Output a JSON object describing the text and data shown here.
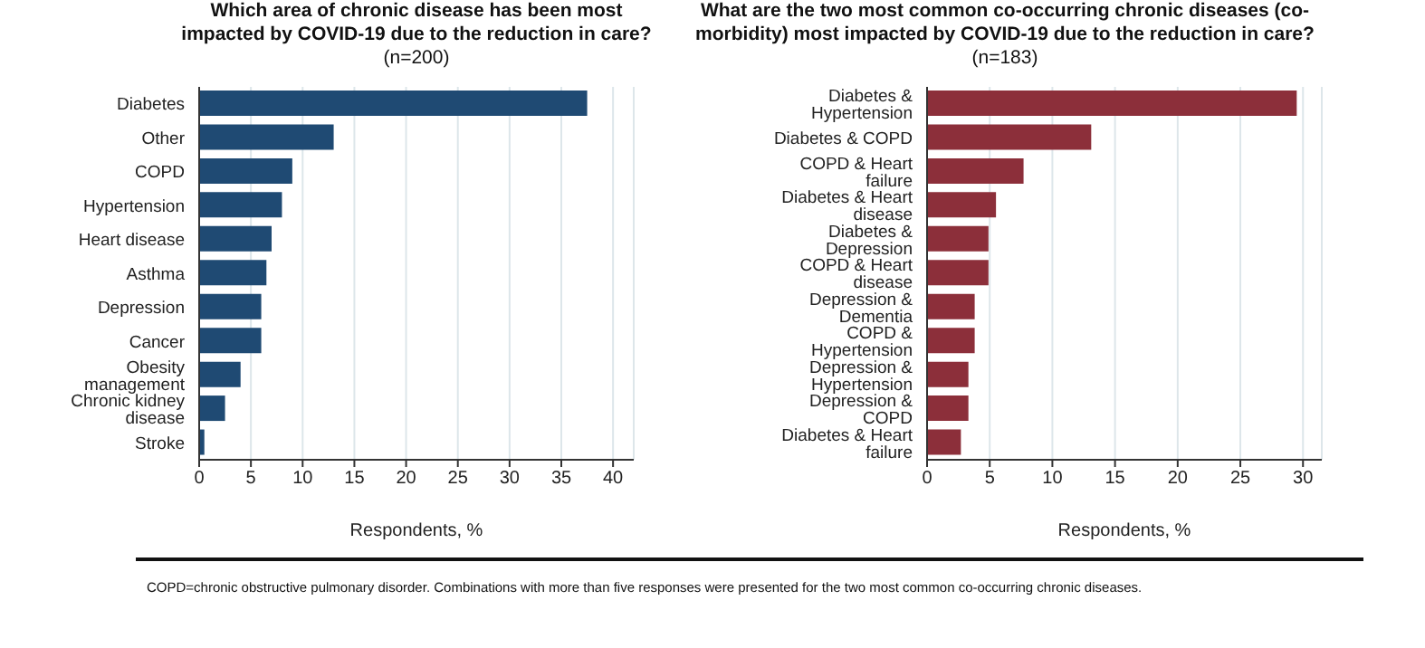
{
  "chart_data": [
    {
      "type": "bar",
      "orientation": "horizontal",
      "title": "Which area of chronic disease has been most impacted by COVID-19 due to the reduction in care?",
      "subtitle": "(n=200)",
      "xlabel": "Respondents, %",
      "categories": [
        "Diabetes",
        "Other",
        "COPD",
        "Hypertension",
        "Heart disease",
        "Asthma",
        "Depression",
        "Cancer",
        "Obesity management",
        "Chronic kidney disease",
        "Stroke"
      ],
      "values": [
        37.5,
        13,
        9,
        8,
        7,
        6.5,
        6,
        6,
        4,
        2.5,
        0.5
      ],
      "color": "#1f4a73",
      "xlim": [
        0,
        42
      ],
      "xticks": [
        0,
        5,
        10,
        15,
        20,
        25,
        30,
        35,
        40
      ],
      "grid": "x",
      "legend": false
    },
    {
      "type": "bar",
      "orientation": "horizontal",
      "title": "What are the two most common co-occurring chronic diseases (co-morbidity) most impacted by COVID-19 due to the reduction in care?",
      "subtitle": "(n=183)",
      "xlabel": "Respondents, %",
      "categories": [
        "Diabetes & Hypertension",
        "Diabetes & COPD",
        "COPD & Heart failure",
        "Diabetes & Heart disease",
        "Diabetes & Depression",
        "COPD & Heart disease",
        "Depression & Dementia",
        "COPD & Hypertension",
        "Depression & Hypertension",
        "Depression & COPD",
        "Diabetes & Heart failure"
      ],
      "values": [
        29.5,
        13.1,
        7.7,
        5.5,
        4.9,
        4.9,
        3.8,
        3.8,
        3.3,
        3.3,
        2.7
      ],
      "color": "#8c2f3a",
      "xlim": [
        0,
        31.5
      ],
      "xticks": [
        0,
        5,
        10,
        15,
        20,
        25,
        30
      ],
      "grid": "x",
      "legend": false,
      "annotations": [
        "COPD=chronic obstructive pulmonary disorder. Combinations with more than five responses were presented for the two most common co-occurring chronic diseases."
      ]
    }
  ]
}
